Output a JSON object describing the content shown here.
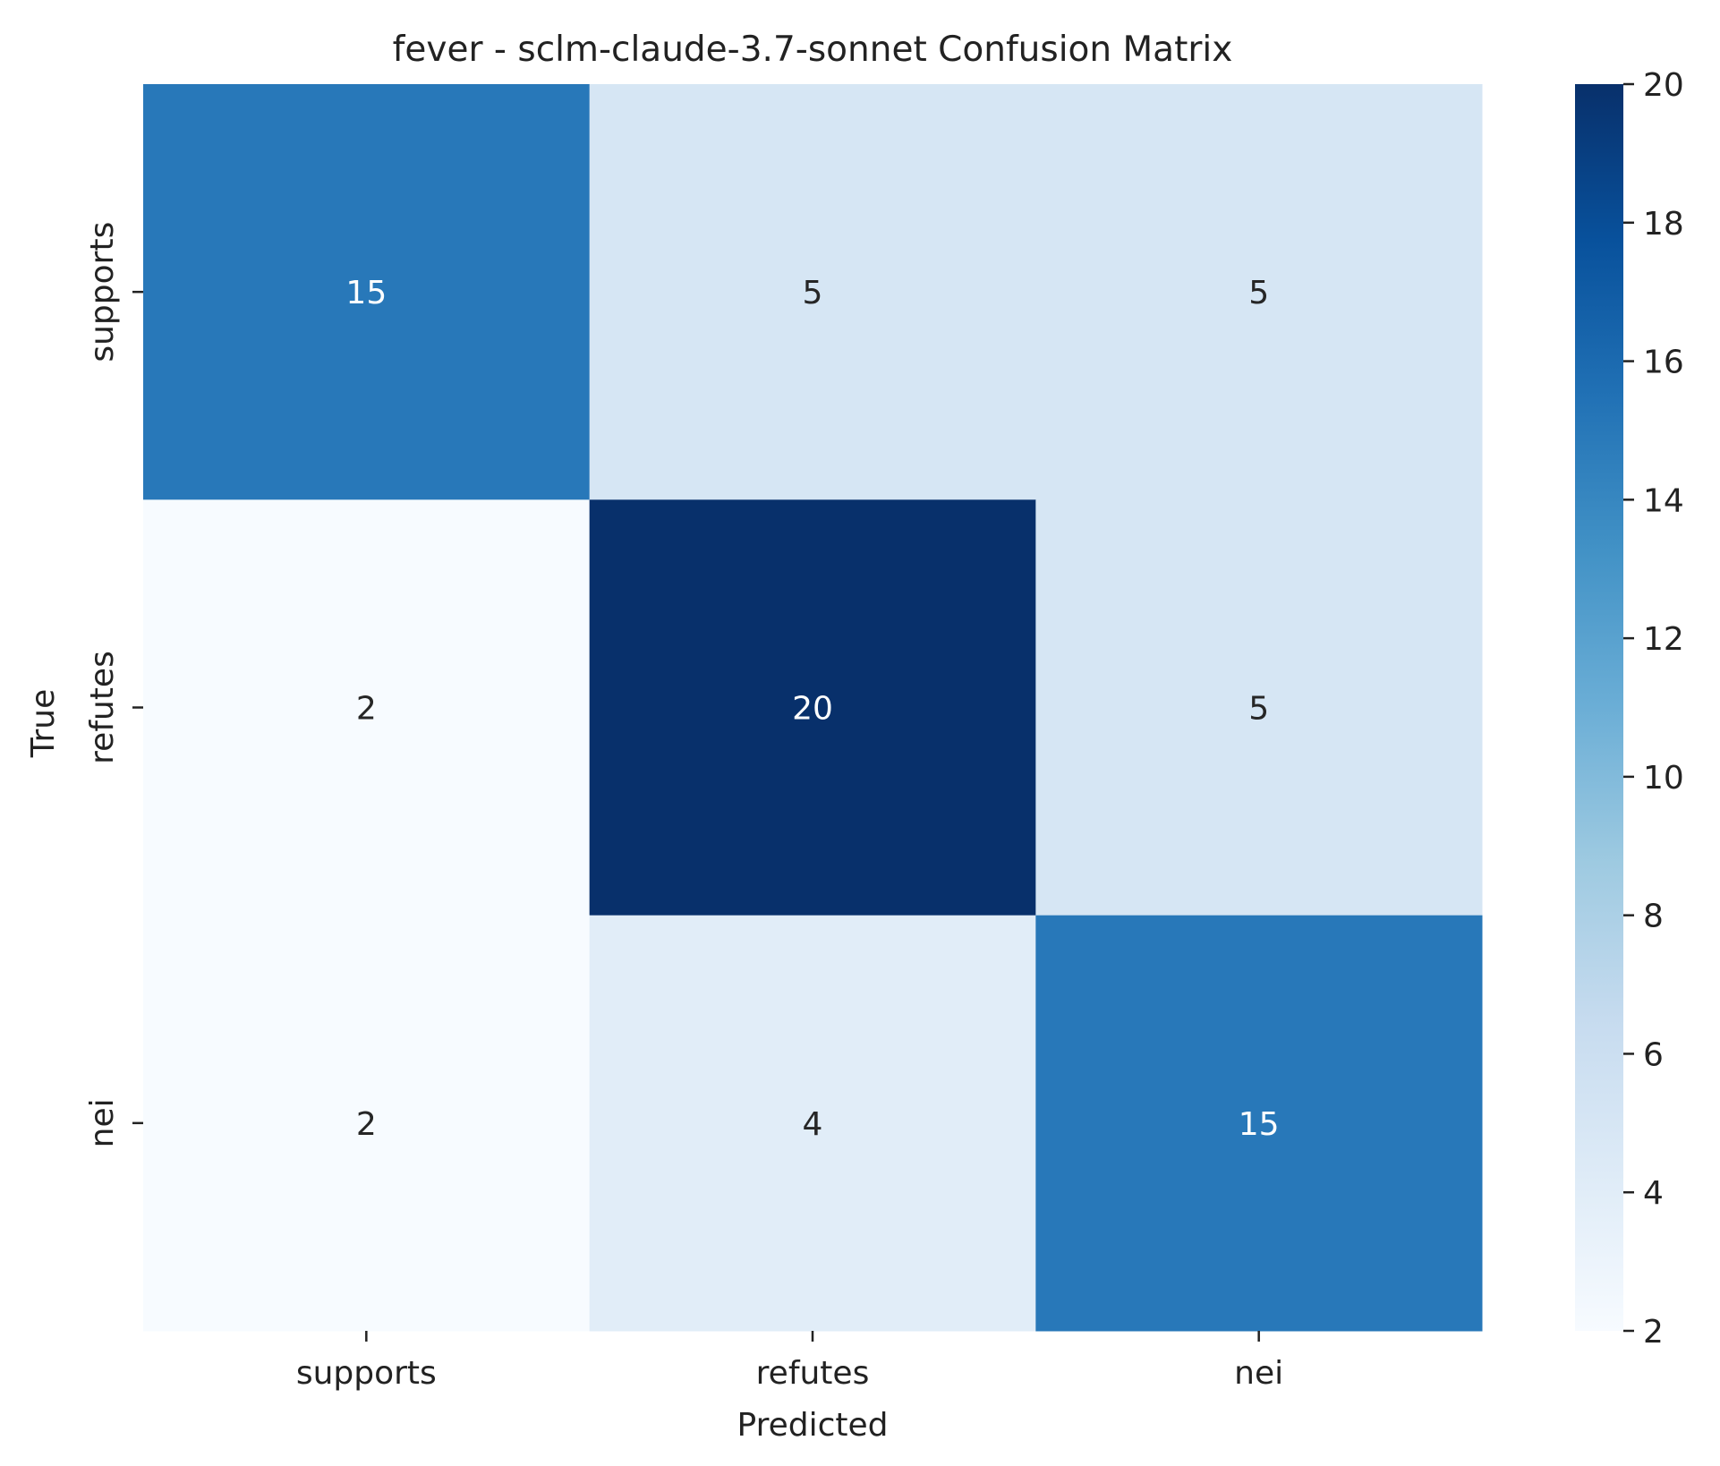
{
  "chart_data": {
    "type": "heatmap",
    "title": "fever - sclm-claude-3.7-sonnet Confusion Matrix",
    "xlabel": "Predicted",
    "ylabel": "True",
    "x_categories": [
      "supports",
      "refutes",
      "nei"
    ],
    "y_categories": [
      "supports",
      "refutes",
      "nei"
    ],
    "values": [
      [
        15,
        5,
        5
      ],
      [
        2,
        20,
        5
      ],
      [
        2,
        4,
        15
      ]
    ],
    "colormap": "Blues",
    "colorbar": {
      "range": [
        2,
        20
      ],
      "ticks": [
        "2",
        "4",
        "6",
        "8",
        "10",
        "12",
        "14",
        "16",
        "18",
        "20"
      ],
      "colors": [
        "#f7fbff",
        "#deebf7",
        "#c6dbef",
        "#9ecae1",
        "#6baed6",
        "#4292c6",
        "#2171b5",
        "#08519c",
        "#08306b"
      ]
    },
    "annotation_colors": {
      "light": "#ffffff",
      "dark": "#262626"
    },
    "grid": false
  }
}
